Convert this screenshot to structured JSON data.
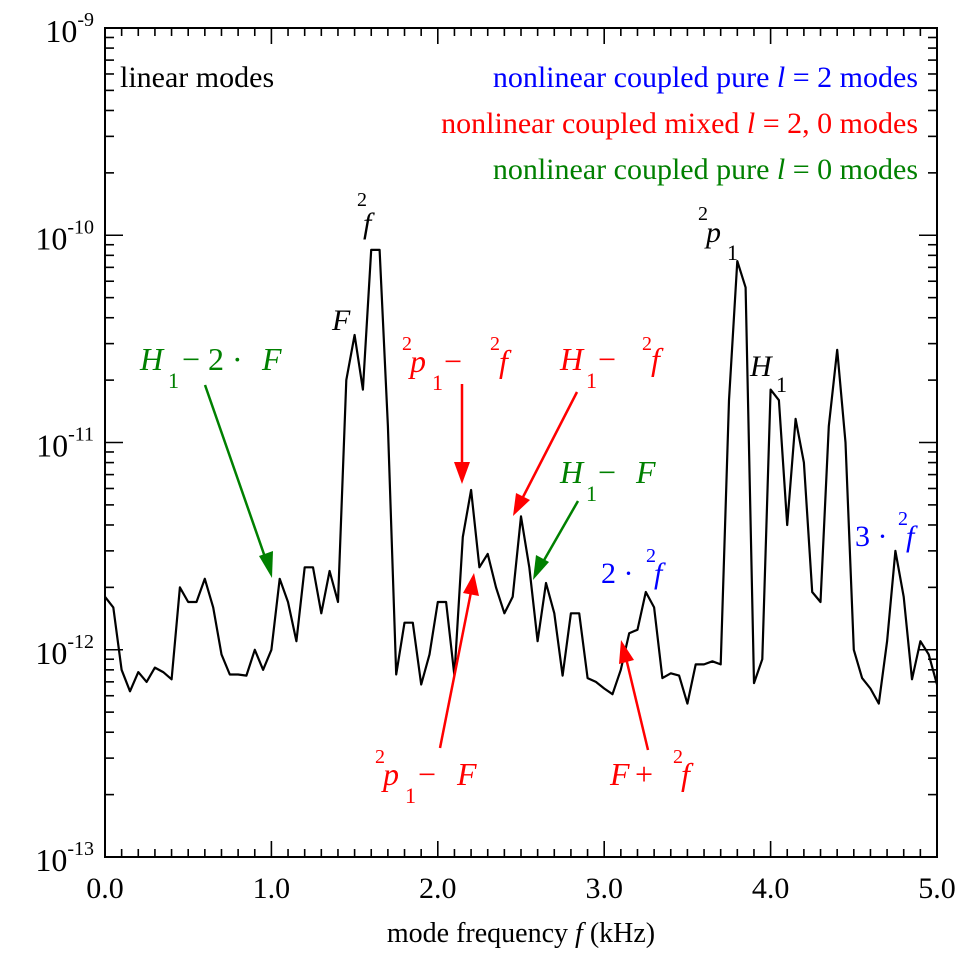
{
  "chart_data": {
    "type": "line",
    "xlabel": "mode frequency f (kHz)",
    "xlabel_parts": [
      "mode frequency ",
      "f",
      " (kHz)"
    ],
    "xlim": [
      0,
      5
    ],
    "ylim": [
      1e-13,
      1e-09
    ],
    "yscale": "log",
    "x_ticks": [
      {
        "value": 0,
        "label": "0.0"
      },
      {
        "value": 1,
        "label": "1.0"
      },
      {
        "value": 2,
        "label": "2.0"
      },
      {
        "value": 3,
        "label": "3.0"
      },
      {
        "value": 4,
        "label": "4.0"
      },
      {
        "value": 5,
        "label": "5.0"
      }
    ],
    "y_ticks": [
      {
        "value": 1e-13,
        "label_base": "10",
        "label_exp": "-13"
      },
      {
        "value": 1e-12,
        "label_base": "10",
        "label_exp": "-12"
      },
      {
        "value": 1e-11,
        "label_base": "10",
        "label_exp": "-11"
      },
      {
        "value": 1e-10,
        "label_base": "10",
        "label_exp": "-10"
      },
      {
        "value": 1e-09,
        "label_base": "10",
        "label_exp": "-9"
      }
    ],
    "grid": false,
    "line_color": "#000000",
    "series": [
      {
        "x": [
          0.0,
          0.05,
          0.1,
          0.15,
          0.2,
          0.25,
          0.3,
          0.35,
          0.4,
          0.45,
          0.5,
          0.55,
          0.6,
          0.65,
          0.7,
          0.75,
          0.8,
          0.85,
          0.9,
          0.95,
          1.0,
          1.05,
          1.1,
          1.15,
          1.2,
          1.25,
          1.3,
          1.35,
          1.4,
          1.45,
          1.5,
          1.55,
          1.6,
          1.65,
          1.7,
          1.75,
          1.8,
          1.85,
          1.9,
          1.95,
          2.0,
          2.05,
          2.1,
          2.15,
          2.2,
          2.25,
          2.3,
          2.35,
          2.4,
          2.45,
          2.5,
          2.55,
          2.6,
          2.65,
          2.7,
          2.75,
          2.8,
          2.85,
          2.9,
          2.95,
          3.0,
          3.05,
          3.1,
          3.15,
          3.2,
          3.25,
          3.3,
          3.35,
          3.4,
          3.45,
          3.5,
          3.55,
          3.6,
          3.65,
          3.7,
          3.75,
          3.8,
          3.85,
          3.9,
          3.95,
          4.0,
          4.05,
          4.1,
          4.15,
          4.2,
          4.25,
          4.3,
          4.35,
          4.4,
          4.45,
          4.5,
          4.55,
          4.6,
          4.65,
          4.7,
          4.75,
          4.8,
          4.85,
          4.9,
          4.95,
          5.0
        ],
        "y": [
          1.8e-12,
          1.6e-12,
          8e-13,
          6.3e-13,
          7.8e-13,
          7e-13,
          8.2e-13,
          7.8e-13,
          7.2e-13,
          2e-12,
          1.7e-12,
          1.7e-12,
          2.2e-12,
          1.6e-12,
          9.5e-13,
          7.6e-13,
          7.6e-13,
          7.5e-13,
          1e-12,
          8e-13,
          1e-12,
          2.2e-12,
          1.7e-12,
          1.1e-12,
          2.5e-12,
          2.5e-12,
          1.5e-12,
          2.4e-12,
          1.7e-12,
          2e-11,
          3.3e-11,
          1.8e-11,
          8.5e-11,
          8.5e-11,
          1.2e-11,
          7.6e-13,
          1.35e-12,
          1.35e-12,
          6.8e-13,
          9.5e-13,
          1.7e-12,
          1.7e-12,
          7.5e-13,
          3.5e-12,
          5.9e-12,
          2.5e-12,
          2.9e-12,
          2e-12,
          1.5e-12,
          1.8e-12,
          4.4e-12,
          2.5e-12,
          1.1e-12,
          2.1e-12,
          1.5e-12,
          7.5e-13,
          1.5e-12,
          1.5e-12,
          7.3e-13,
          7e-13,
          6.5e-13,
          6.1e-13,
          8e-13,
          1.2e-12,
          1.25e-12,
          1.9e-12,
          1.6e-12,
          7.3e-13,
          7.7e-13,
          7.5e-13,
          5.5e-13,
          8.5e-13,
          8.5e-13,
          8.8e-13,
          8.5e-13,
          1.6e-11,
          7.5e-11,
          5.6e-11,
          6.9e-13,
          9e-13,
          1.8e-11,
          1.6e-11,
          4e-12,
          1.3e-11,
          8e-12,
          1.9e-12,
          1.7e-12,
          1.2e-11,
          2.8e-11,
          1e-11,
          1e-12,
          7.3e-13,
          6.5e-13,
          5.5e-13,
          1.1e-12,
          3e-12,
          1.8e-12,
          7.2e-13,
          1.1e-12,
          9.5e-13,
          6.8e-13
        ]
      }
    ],
    "legend": [
      {
        "text": "linear modes",
        "color": "#000000"
      },
      {
        "text_before": "nonlinear coupled pure ",
        "var": "l",
        "text_after": " = 2 modes",
        "color": "#0000ff"
      },
      {
        "text_before": "nonlinear coupled mixed ",
        "var": "l",
        "text_after": " = 2, 0 modes",
        "color": "#ff0000"
      },
      {
        "text_before": "nonlinear coupled pure ",
        "var": "l",
        "text_after": " = 0 modes",
        "color": "#008000"
      }
    ],
    "colors": {
      "black": "#000000",
      "blue": "#0000ff",
      "red": "#ff0000",
      "green": "#008000"
    },
    "peak_labels": {
      "F": "F",
      "f2": {
        "sup": "2",
        "base": "f"
      },
      "p1": {
        "sup": "2",
        "base": "p",
        "sub": "1"
      },
      "H1": {
        "base": "H",
        "sub": "1"
      }
    },
    "annotations": {
      "h1_minus_2f": {
        "parts": [
          "H",
          "1",
          " − 2 · ",
          "F"
        ],
        "color": "#008000"
      },
      "p1_minus_f2": {
        "parts": [
          "2",
          "p",
          "1",
          " − ",
          "2",
          "f"
        ],
        "color": "#ff0000"
      },
      "h1_minus_f2": {
        "parts": [
          "H",
          "1",
          " − ",
          "2",
          "f"
        ],
        "color": "#ff0000"
      },
      "h1_minus_f": {
        "parts": [
          "H",
          "1",
          " − ",
          "F"
        ],
        "color": "#008000"
      },
      "two_f2": {
        "parts": [
          "2 · ",
          "2",
          "f"
        ],
        "color": "#0000ff"
      },
      "three_f2": {
        "parts": [
          "3 · ",
          "2",
          "f"
        ],
        "color": "#0000ff"
      },
      "p1_minus_f": {
        "parts": [
          "2",
          "p",
          "1",
          " − ",
          "F"
        ],
        "color": "#ff0000"
      },
      "f_plus_f2": {
        "parts": [
          "F",
          " + ",
          "2",
          "f"
        ],
        "color": "#ff0000"
      }
    }
  }
}
